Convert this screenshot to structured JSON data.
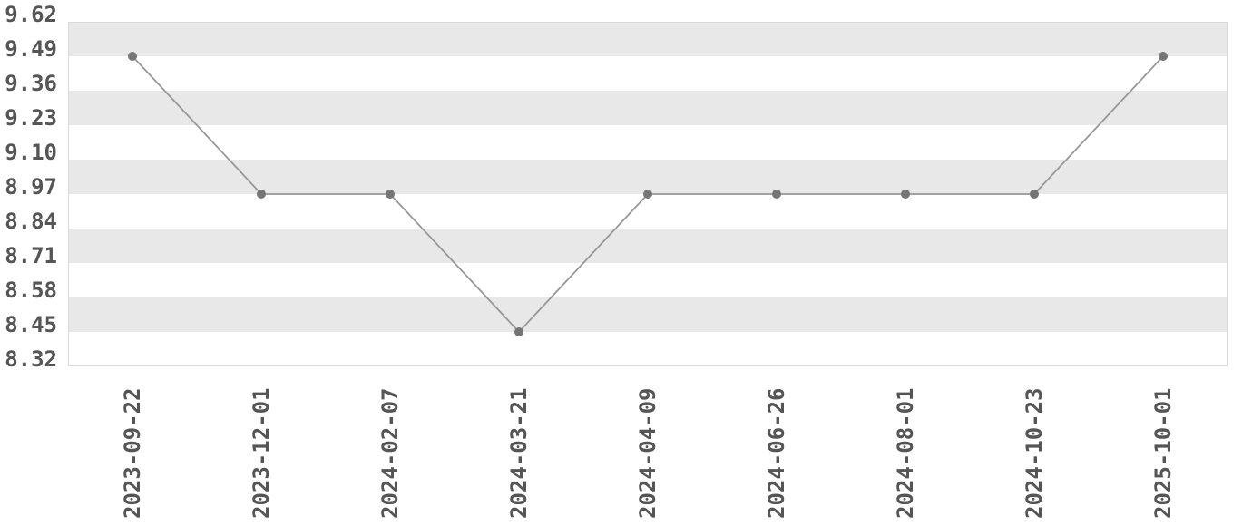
{
  "chart_data": {
    "type": "line",
    "title": "",
    "xlabel": "",
    "ylabel": "",
    "x": [
      "2023-09-22",
      "2023-12-01",
      "2024-02-07",
      "2024-03-21",
      "2024-04-09",
      "2024-06-26",
      "2024-08-01",
      "2024-10-23",
      "2025-10-01"
    ],
    "values": [
      9.49,
      8.97,
      8.97,
      8.45,
      8.97,
      8.97,
      8.97,
      8.97,
      9.49
    ],
    "ylim": [
      8.32,
      9.62
    ],
    "y_tick_step": 0.13,
    "y_tick_labels": [
      "9.62",
      "9.49",
      "9.36",
      "9.23",
      "9.10",
      "8.97",
      "8.84",
      "8.71",
      "8.58",
      "8.45",
      "8.32"
    ],
    "grid": "horizontal-zebra-stripes",
    "legend": "none",
    "marker": "circle",
    "colors": {
      "background": "#ffffff",
      "stripe": "#e8e8e8",
      "line": "#979797",
      "marker": "#757575",
      "tick_text": "#555555",
      "border": "#d9d9d9"
    }
  }
}
